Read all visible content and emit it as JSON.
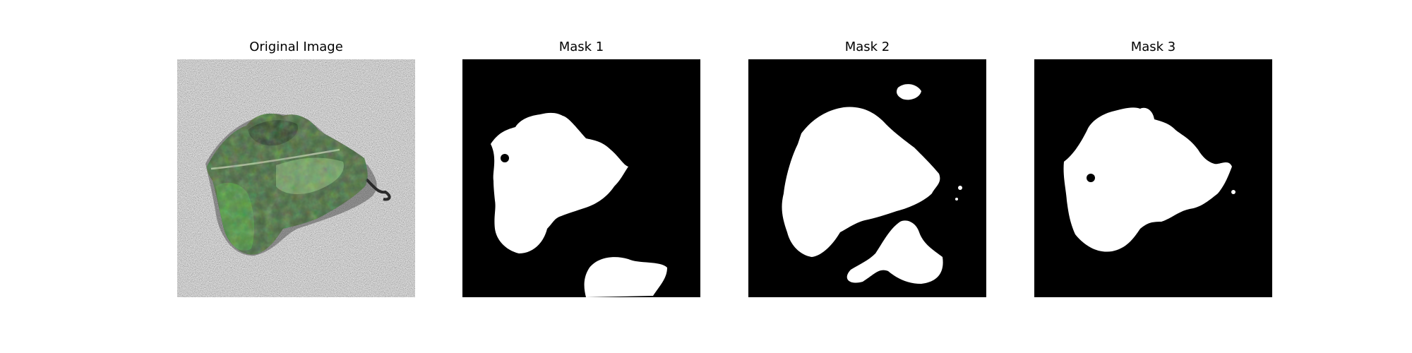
{
  "panels": [
    {
      "title": "Original Image"
    },
    {
      "title": "Mask 1"
    },
    {
      "title": "Mask 2"
    },
    {
      "title": "Mask 3"
    }
  ],
  "colors": {
    "background": "#ffffff",
    "mask_background": "#000000",
    "mask_foreground": "#ffffff",
    "noise_gray": "#9a9a9a",
    "leaf_green": "#4f8a45",
    "leaf_dark": "#2e3a2c"
  }
}
